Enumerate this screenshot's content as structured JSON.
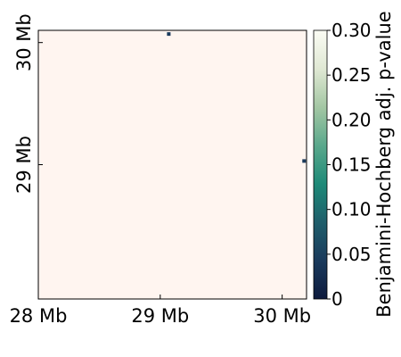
{
  "chart_data": {
    "type": "heatmap",
    "title": "",
    "xlabel": "",
    "ylabel": "",
    "x_ticks": [
      {
        "value": 28,
        "label": "28 Mb"
      },
      {
        "value": 29,
        "label": "29 Mb"
      },
      {
        "value": 30,
        "label": "30 Mb"
      }
    ],
    "y_ticks": [
      {
        "value": 29,
        "label": "29 Mb"
      },
      {
        "value": 30,
        "label": "30 Mb"
      }
    ],
    "xlim": [
      28,
      30.2
    ],
    "ylim": [
      27.9,
      30.1
    ],
    "background_color": "#fff5f0",
    "cells": [
      {
        "x": 29.07,
        "y": 30.07,
        "p": 0.04
      },
      {
        "x": 30.18,
        "y": 29.03,
        "p": 0.04
      }
    ],
    "colorbar": {
      "label": "Benjamini-Hochberg adj. p-value",
      "min": 0,
      "max": 0.3,
      "ticks": [
        "0",
        "0.05",
        "0.10",
        "0.15",
        "0.20",
        "0.25",
        "0.30"
      ],
      "colors": [
        "#0d1a3d",
        "#1a3a5c",
        "#1f5e6b",
        "#1e8a78",
        "#5aa88c",
        "#a4c7a4",
        "#e0e8d4",
        "#fbfcf4"
      ]
    }
  }
}
